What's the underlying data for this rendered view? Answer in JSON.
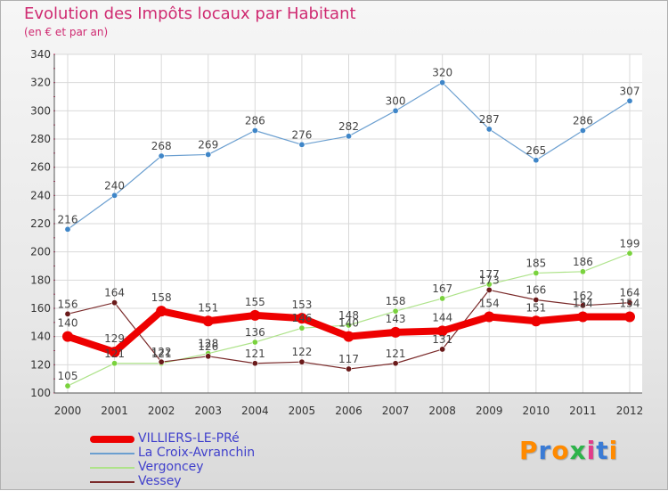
{
  "chart_data": {
    "type": "line",
    "title": "Evolution des Impôts locaux par Habitant",
    "subtitle": "(en € et par an)",
    "x": [
      "2000",
      "2001",
      "2002",
      "2003",
      "2004",
      "2005",
      "2006",
      "2007",
      "2008",
      "2009",
      "2010",
      "2011",
      "2012"
    ],
    "ylim": [
      100,
      340
    ],
    "yticks": [
      "100",
      "120",
      "140",
      "160",
      "180",
      "200",
      "220",
      "240",
      "260",
      "280",
      "300",
      "320",
      "340"
    ],
    "grid": true,
    "legend_position": "bottom-left",
    "series": [
      {
        "name": "VILLIERS-LE-PRé",
        "color": "#ee0000",
        "values": [
          140,
          129,
          158,
          151,
          155,
          153,
          140,
          143,
          144,
          154,
          151,
          154,
          154
        ],
        "labels": [
          "140",
          "129",
          "158",
          "151",
          "155",
          "153",
          "140",
          "143",
          "144",
          "154",
          "151",
          "154",
          "154"
        ]
      },
      {
        "name": "La Croix-Avranchin",
        "color": "#6b9fd0",
        "values": [
          216,
          240,
          268,
          269,
          286,
          276,
          282,
          300,
          320,
          287,
          265,
          286,
          307
        ],
        "labels": [
          "216",
          "240",
          "268",
          "269",
          "286",
          "276",
          "282",
          "300",
          "320",
          "287",
          "265",
          "286",
          "307"
        ]
      },
      {
        "name": "Vergoncey",
        "color": "#aee38a",
        "values": [
          105,
          121,
          121,
          128,
          136,
          146,
          148,
          158,
          167,
          177,
          185,
          186,
          199
        ],
        "labels": [
          "105",
          "121",
          "121",
          "128",
          "136",
          "146",
          "148",
          "158",
          "167",
          "177",
          "185",
          "186",
          "199"
        ]
      },
      {
        "name": "Vessey",
        "color": "#7a2a2a",
        "values": [
          156,
          164,
          122,
          126,
          121,
          122,
          117,
          121,
          131,
          173,
          166,
          162,
          164
        ],
        "labels": [
          "156",
          "164",
          "122",
          "126",
          "121",
          "122",
          "117",
          "121",
          "131",
          "173",
          "166",
          "162",
          "164"
        ]
      }
    ]
  },
  "logo": {
    "text": "Proxiti",
    "colors": [
      "#ff8a00",
      "#3a7bd5",
      "#ff8a00",
      "#2db34a",
      "#e23b8a",
      "#3a7bd5",
      "#ff8a00"
    ]
  }
}
